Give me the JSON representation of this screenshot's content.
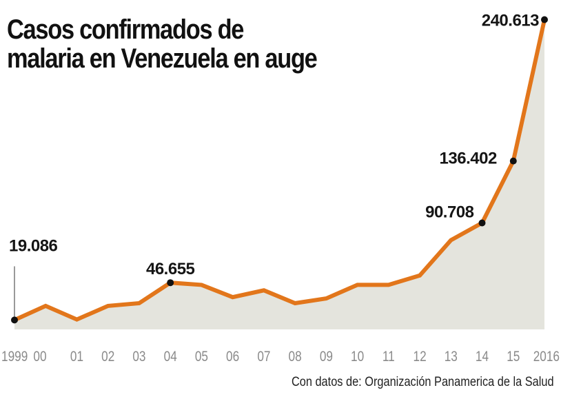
{
  "chart_data": {
    "type": "area",
    "title": "Casos confirmados de malaria en Venezuela en auge",
    "title_lines": [
      "Casos confirmados de",
      "malaria en Venezuela en auge"
    ],
    "xlabel": "",
    "ylabel": "",
    "x": [
      1999,
      2000,
      2001,
      2002,
      2003,
      2004,
      2005,
      2006,
      2007,
      2008,
      2009,
      2010,
      2011,
      2012,
      2013,
      2014,
      2015,
      2016
    ],
    "x_tick_labels": [
      "1999",
      "00",
      "01",
      "02",
      "03",
      "04",
      "05",
      "06",
      "07",
      "08",
      "09",
      "10",
      "11",
      "12",
      "13",
      "14",
      "15",
      "2016"
    ],
    "series": [
      {
        "name": "Casos confirmados de malaria",
        "values": [
          19086,
          29500,
          19500,
          29500,
          31500,
          46655,
          45000,
          36000,
          41000,
          31500,
          35000,
          45000,
          45000,
          52000,
          78000,
          90708,
          136402,
          240613
        ]
      }
    ],
    "annotations": [
      {
        "year": 1999,
        "value": 19086,
        "label": "19.086",
        "leader_line": true
      },
      {
        "year": 2004,
        "value": 46655,
        "label": "46.655"
      },
      {
        "year": 2014,
        "value": 90708,
        "label": "90.708"
      },
      {
        "year": 2015,
        "value": 136402,
        "label": "136.402"
      },
      {
        "year": 2016,
        "value": 240613,
        "label": "240.613"
      }
    ],
    "ylim": [
      0,
      250000
    ],
    "grid": false,
    "legend": "none",
    "colors": {
      "line": "#e2761b",
      "area": "#e4e4dd",
      "marker": "#111111",
      "tick_text": "#8a8a8a"
    }
  },
  "source": "Con datos de: Organización Panamerica de la Salud"
}
